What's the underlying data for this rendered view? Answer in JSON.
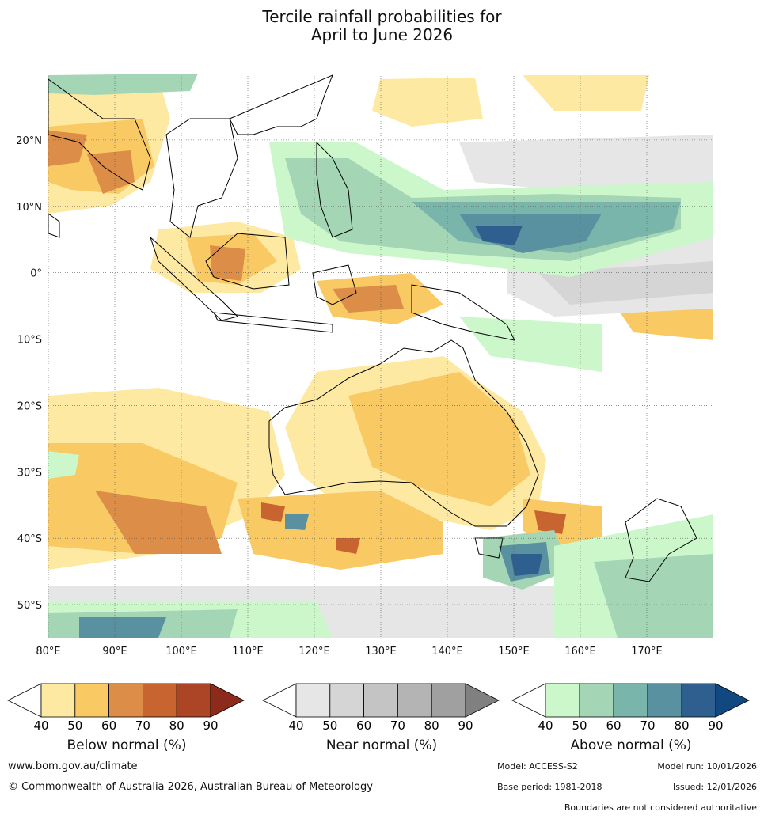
{
  "title_line1": "Tercile rainfall probabilities for",
  "title_line2": "April to June 2026",
  "map": {
    "lon_labels": [
      "80°E",
      "90°E",
      "100°E",
      "110°E",
      "120°E",
      "130°E",
      "140°E",
      "150°E",
      "160°E",
      "170°E"
    ],
    "lat_labels": [
      "20°N",
      "10°N",
      "0°",
      "10°S",
      "20°S",
      "30°S",
      "40°S",
      "50°S"
    ],
    "lon_values": [
      80,
      90,
      100,
      110,
      120,
      130,
      140,
      150,
      160,
      170
    ],
    "lat_values": [
      20,
      10,
      0,
      -10,
      -20,
      -30,
      -40,
      -50
    ],
    "lon_range": [
      80,
      180
    ],
    "lat_range": [
      -55,
      30
    ],
    "gridlines": true
  },
  "colorbars": [
    {
      "label": "Below normal (%)",
      "ticks": [
        "40",
        "50",
        "60",
        "70",
        "80",
        "90"
      ],
      "colors": [
        "#ffffff",
        "#fde9a2",
        "#f9c964",
        "#dc8d47",
        "#c8642f",
        "#ac4526",
        "#8c2a1c"
      ]
    },
    {
      "label": "Near normal (%)",
      "ticks": [
        "40",
        "50",
        "60",
        "70",
        "80",
        "90"
      ],
      "colors": [
        "#ffffff",
        "#e6e6e6",
        "#d5d5d5",
        "#c4c4c4",
        "#b4b4b4",
        "#a0a0a0",
        "#808080"
      ]
    },
    {
      "label": "Above normal (%)",
      "ticks": [
        "40",
        "50",
        "60",
        "70",
        "80",
        "90"
      ],
      "colors": [
        "#ffffff",
        "#cbf7cb",
        "#a4d6b6",
        "#7ab5ab",
        "#5a91a0",
        "#2e5f8f",
        "#114880"
      ]
    }
  ],
  "footer": {
    "url": "www.bom.gov.au/climate",
    "copyright": "© Commonwealth of Australia 2026, Australian Bureau of Meteorology",
    "model": "Model: ACCESS-S2",
    "model_run": "Model run: 10/01/2026",
    "base_period": "Base period: 1981-2018",
    "issued": "Issued: 12/01/2026",
    "disclaimer": "Boundaries are not considered authoritative"
  }
}
